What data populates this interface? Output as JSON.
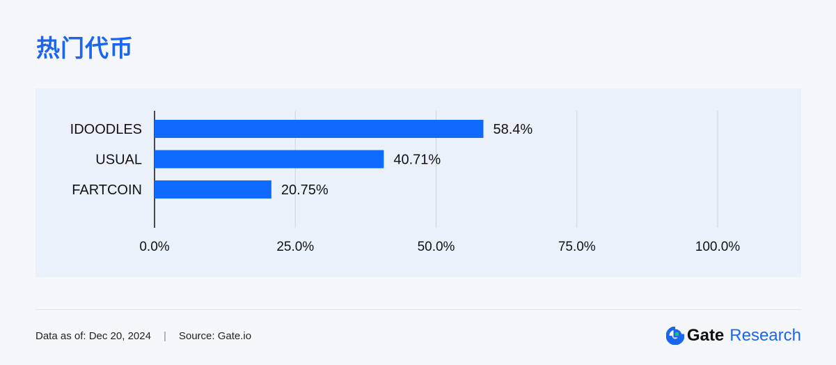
{
  "header": {
    "title": "热门代币"
  },
  "footer": {
    "date_text": "Data as of: Dec 20, 2024",
    "separator": "|",
    "source_text": "Source: Gate.io"
  },
  "brand": {
    "gate": "Gate",
    "research": "Research"
  },
  "colors": {
    "accent": "#1a66f0",
    "bar": "#0f6bff",
    "panel": "#ebf1fb",
    "grid": "#cfd3da"
  },
  "chart_data": {
    "type": "bar",
    "orientation": "horizontal",
    "categories": [
      "IDOODLES",
      "USUAL",
      "FARTCOIN"
    ],
    "values": [
      58.4,
      40.71,
      20.75
    ],
    "value_labels": [
      "58.4%",
      "40.71%",
      "20.75%"
    ],
    "xlim": [
      0,
      100
    ],
    "xticks": [
      0,
      25,
      50,
      75,
      100
    ],
    "xtick_labels": [
      "0.0%",
      "25.0%",
      "50.0%",
      "75.0%",
      "100.0%"
    ],
    "grid": true,
    "title": "",
    "xlabel": "",
    "ylabel": ""
  }
}
